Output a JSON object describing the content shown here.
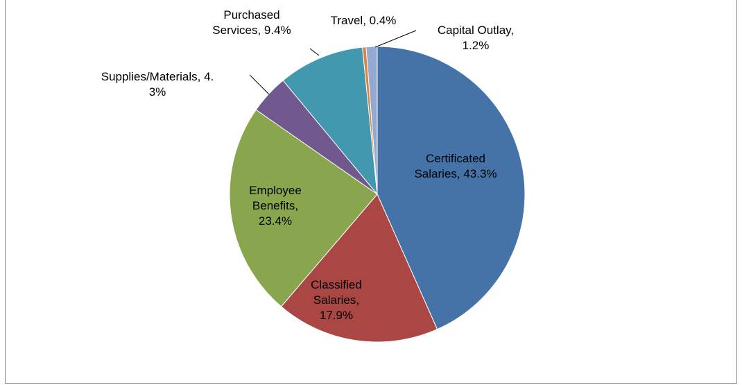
{
  "chart_data": {
    "type": "pie",
    "values": [
      43.3,
      17.9,
      23.4,
      4.3,
      9.4,
      0.4,
      1.2
    ],
    "value_labels": [
      "Certificated Salaries, 43.3%",
      "Classified Salaries, 17.9%",
      "Employee Benefits, 23.4%",
      "Supplies/Materials, 4.3%",
      "Purchased Services, 9.4%",
      "Travel, 0.4%",
      "Capital Outlay, 1.2%"
    ],
    "colors": [
      "#4572A7",
      "#AA4643",
      "#89A54E",
      "#71588F",
      "#4198AF",
      "#DB843D",
      "#93A9CF"
    ]
  }
}
